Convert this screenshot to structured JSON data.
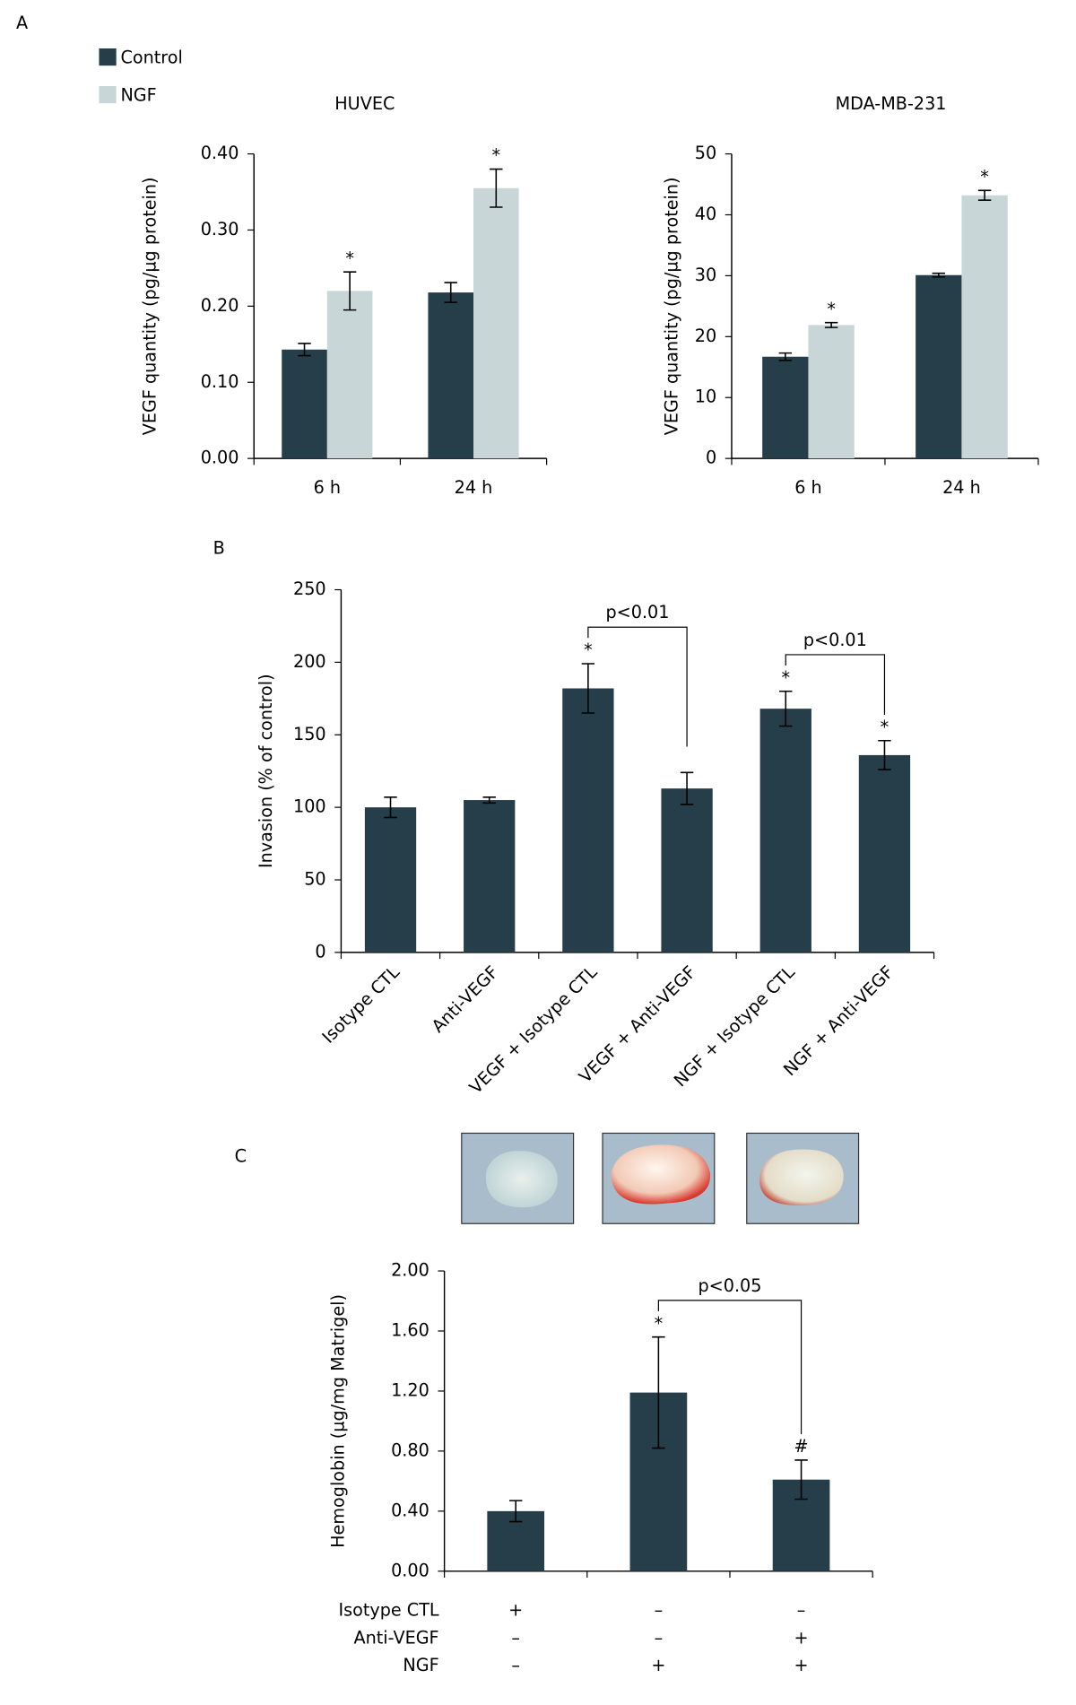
{
  "chart_data": [
    {
      "type": "bar",
      "panel": "A",
      "title": "HUVEC",
      "y_label": "VEGF quantity (pg/µg protein)",
      "categories": [
        "6 h",
        "24 h"
      ],
      "series": [
        {
          "name": "Control",
          "color": "#263d4a",
          "values": [
            0.143,
            0.218
          ],
          "errors": [
            0.008,
            0.013
          ],
          "markers": [
            null,
            null
          ]
        },
        {
          "name": "NGF",
          "color": "#c9d6d8",
          "values": [
            0.22,
            0.355
          ],
          "errors": [
            0.025,
            0.025
          ],
          "markers": [
            "*",
            "*"
          ]
        }
      ],
      "ylim": [
        0,
        0.4
      ],
      "yticks": [
        {
          "value": 0,
          "label": "0.00"
        },
        {
          "value": 0.1,
          "label": "0.10"
        },
        {
          "value": 0.2,
          "label": "0.20"
        },
        {
          "value": 0.3,
          "label": "0.30"
        },
        {
          "value": 0.4,
          "label": "0.40"
        }
      ]
    },
    {
      "type": "bar",
      "title": "MDA-MB-231",
      "y_label": "VEGF quantity (pg/µg protein)",
      "categories": [
        "6 h",
        "24 h"
      ],
      "series": [
        {
          "color": "#263d4a",
          "values": [
            16.7,
            30.1
          ],
          "errors": [
            0.6,
            0.3
          ],
          "markers": [
            null,
            null
          ]
        },
        {
          "color": "#c9d6d8",
          "values": [
            21.9,
            43.2
          ],
          "errors": [
            0.4,
            0.8
          ],
          "markers": [
            "*",
            "*"
          ]
        }
      ],
      "ylim": [
        0,
        50
      ],
      "yticks": [
        0,
        10,
        20,
        30,
        40,
        50
      ]
    },
    {
      "type": "bar",
      "panel": "B",
      "y_label": "Invasion (% of control)",
      "categories": [
        "Isotype CTL",
        "Anti-VEGF",
        "VEGF + Isotype CTL",
        "VEGF + Anti-VEGF",
        "NGF + Isotype CTL",
        "NGF + Anti-VEGF"
      ],
      "color": "#263d4a",
      "values": [
        100,
        105,
        182,
        113,
        168,
        136
      ],
      "errors": [
        7,
        2,
        17,
        11,
        12,
        10
      ],
      "markers": [
        null,
        null,
        "*",
        null,
        "*",
        "*"
      ],
      "comparisons": [
        {
          "between": [
            2,
            3
          ],
          "label": "p<0.01"
        },
        {
          "between": [
            4,
            5
          ],
          "label": "p<0.01"
        }
      ],
      "ylim": [
        0,
        250
      ],
      "yticks": [
        0,
        50,
        100,
        150,
        200,
        250
      ]
    },
    {
      "type": "bar",
      "panel": "C",
      "y_label": "Hemoglobin (µg/mg Matrigel)",
      "categories": [
        null,
        null,
        null
      ],
      "color": "#263d4a",
      "values": [
        0.4,
        1.19,
        0.61
      ],
      "errors": [
        0.07,
        0.37,
        0.13
      ],
      "markers": [
        null,
        "*",
        "#"
      ],
      "comparisons": [
        {
          "between": [
            1,
            2
          ],
          "label": "p<0.05"
        }
      ],
      "conditions": [
        {
          "name": "Isotype CTL",
          "signs": [
            "+",
            "–",
            "–"
          ]
        },
        {
          "name": "Anti-VEGF",
          "signs": [
            "–",
            "–",
            "+"
          ]
        },
        {
          "name": "NGF",
          "signs": [
            "–",
            "+",
            "+"
          ]
        }
      ],
      "ylim": [
        0,
        2
      ],
      "yticks": [
        {
          "value": 0,
          "label": "0.00"
        },
        {
          "value": 0.4,
          "label": "0.40"
        },
        {
          "value": 0.8,
          "label": "0.80"
        },
        {
          "value": 1.2,
          "label": "1.20"
        },
        {
          "value": 1.6,
          "label": "1.60"
        },
        {
          "value": 2,
          "label": "2.00"
        }
      ]
    }
  ]
}
